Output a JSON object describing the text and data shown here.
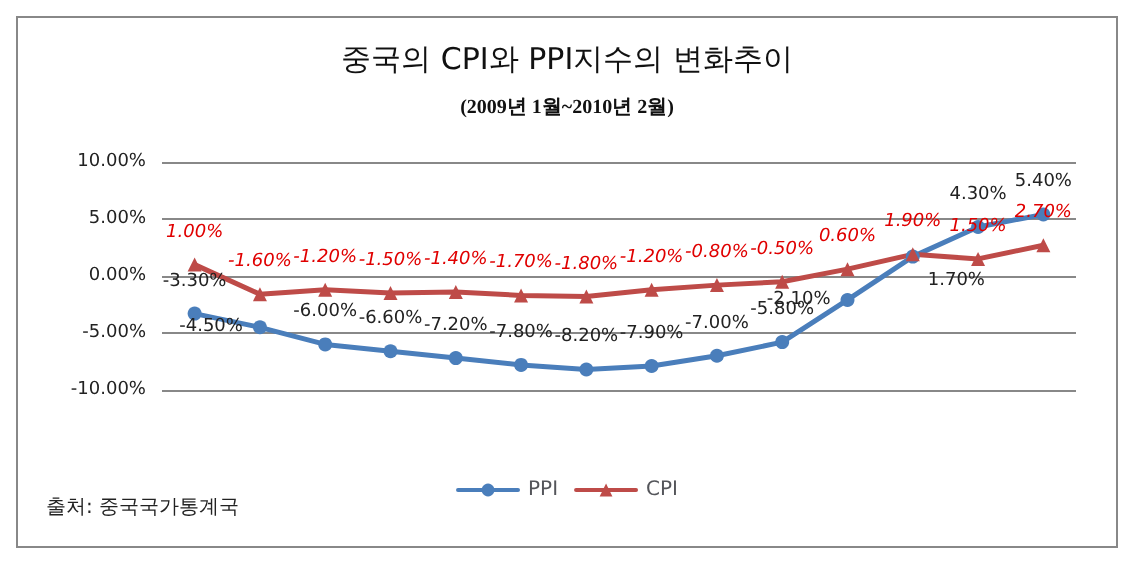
{
  "chart_data": {
    "type": "line",
    "title": "중국의 CPI와 PPI지수의 변화추이",
    "subtitle": "(2009년 1월~2010년 2월)",
    "annotations": [
      "출처: 중국국가통계국"
    ],
    "categories": [
      null,
      null,
      null,
      null,
      null,
      null,
      null,
      null,
      null,
      null,
      null,
      null,
      null,
      null
    ],
    "series": [
      {
        "name": "PPI",
        "color": "#4a7ebb",
        "marker": "circle",
        "values": [
          -3.3,
          -4.5,
          -6.0,
          -6.6,
          -7.2,
          -7.8,
          -8.2,
          -7.9,
          -7.0,
          -5.8,
          -2.1,
          1.7,
          4.3,
          5.4
        ],
        "value_labels": [
          "-3.30%",
          "-4.50%",
          "-6.00%",
          "-6.60%",
          "-7.20%",
          "-7.80%",
          "-8.20%",
          "-7.90%",
          "-7.00%",
          "-5.80%",
          "-2.10%",
          "1.70%",
          "4.30%",
          "5.40%"
        ]
      },
      {
        "name": "CPI",
        "color": "#be4b48",
        "marker": "triangle",
        "values": [
          1.0,
          -1.6,
          -1.2,
          -1.5,
          -1.4,
          -1.7,
          -1.8,
          -1.2,
          -0.8,
          -0.5,
          0.6,
          1.9,
          1.5,
          2.7
        ],
        "value_labels": [
          "1.00%",
          "-1.60%",
          "-1.20%",
          "-1.50%",
          "-1.40%",
          "-1.70%",
          "-1.80%",
          "-1.20%",
          "-0.80%",
          "-0.50%",
          "0.60%",
          "1.90%",
          "1.50%",
          "2.70%"
        ]
      }
    ],
    "ylim": [
      -10,
      10
    ],
    "yticks": [
      {
        "value": -10,
        "label": "-10.00%"
      },
      {
        "value": -5,
        "label": "-5.00%"
      },
      {
        "value": 0,
        "label": "0.00%"
      },
      {
        "value": 5,
        "label": "5.00%"
      },
      {
        "value": 10,
        "label": "10.00%"
      }
    ],
    "grid": "y",
    "legend": "bottom"
  }
}
